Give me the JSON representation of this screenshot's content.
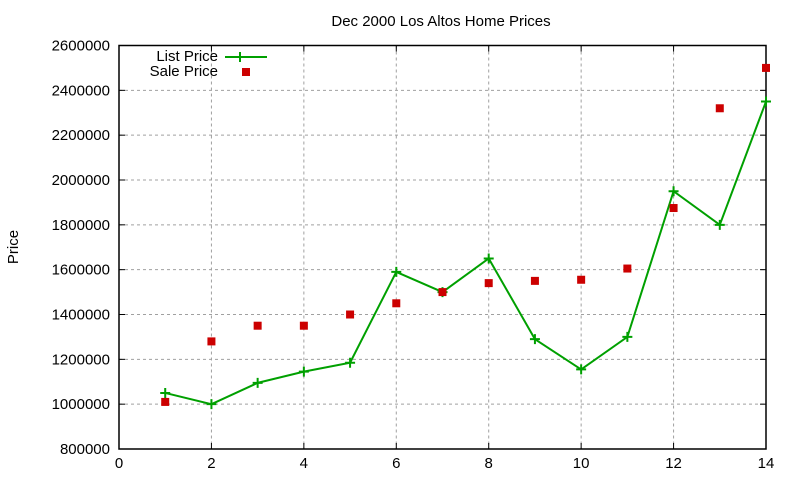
{
  "chart_data": {
    "type": "line",
    "title": "Dec 2000 Los Altos Home Prices",
    "xlabel": "",
    "ylabel": "Price",
    "xlim": [
      0,
      14
    ],
    "ylim": [
      800000,
      2600000
    ],
    "x_ticks": [
      "0",
      "2",
      "4",
      "6",
      "8",
      "10",
      "12",
      "14"
    ],
    "y_ticks": [
      "800000",
      "1000000",
      "1200000",
      "1400000",
      "1600000",
      "1800000",
      "2000000",
      "2200000",
      "2400000",
      "2600000"
    ],
    "grid": true,
    "legend_position": "top-left",
    "x": [
      1,
      2,
      3,
      4,
      5,
      6,
      7,
      8,
      9,
      10,
      11,
      12,
      13,
      14
    ],
    "series": [
      {
        "name": "List Price",
        "style": "linespoints",
        "marker": "plus",
        "color": "#00a000",
        "values": [
          1050000,
          1000000,
          1095000,
          1145000,
          1185000,
          1590000,
          1500000,
          1650000,
          1290000,
          1155000,
          1300000,
          1950000,
          1800000,
          2350000
        ]
      },
      {
        "name": "Sale Price",
        "style": "points",
        "marker": "square",
        "color": "#cc0000",
        "values": [
          1010000,
          1280000,
          1350000,
          1350000,
          1400000,
          1450000,
          1500000,
          1540000,
          1550000,
          1555000,
          1605000,
          1875000,
          2320000,
          2500000
        ]
      }
    ]
  },
  "legend": {
    "list_label": "List Price",
    "sale_label": "Sale Price"
  }
}
